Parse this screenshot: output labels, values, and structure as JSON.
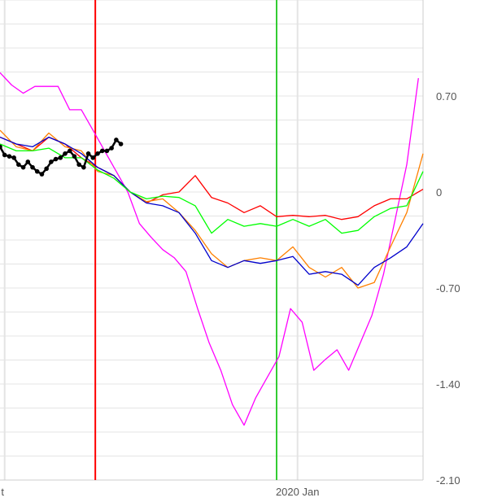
{
  "chart_data": {
    "type": "line",
    "title": "",
    "xlabel": "",
    "ylabel": "",
    "ylim": [
      -2.1,
      1.4
    ],
    "y_ticks": [
      {
        "value": 0.7,
        "label": "0.70"
      },
      {
        "value": 0,
        "label": "0"
      },
      {
        "value": -0.7,
        "label": "-0.70"
      },
      {
        "value": -1.4,
        "label": "-1.40"
      },
      {
        "value": -2.1,
        "label": "-2.10"
      }
    ],
    "x_axis": {
      "start": "2019-08-26",
      "end": "2020-02-24",
      "tick_labels": [
        {
          "date": "2019-08-28",
          "label": "t"
        },
        {
          "date": "2020-01-01",
          "label": "2020 Jan"
        }
      ],
      "vertical_markers": [
        {
          "date": "2019-10-06",
          "color": "#ff0000"
        },
        {
          "date": "2019-12-23",
          "color": "#33cc33"
        }
      ]
    },
    "grid": true,
    "legend": "none",
    "colors": {
      "black": "#000000",
      "magenta": "#ff00ff",
      "red": "#ff0000",
      "orange": "#ff8000",
      "blue": "#0000cc",
      "green": "#00ff00",
      "grid": "#e4e4e4"
    },
    "series": [
      {
        "color": "magenta",
        "x": [
          "2019-08-26",
          "2019-08-31",
          "2019-09-05",
          "2019-09-10",
          "2019-09-15",
          "2019-09-20",
          "2019-09-25",
          "2019-09-30",
          "2019-10-05",
          "2019-10-10",
          "2019-10-15",
          "2019-10-20",
          "2019-10-25",
          "2019-10-30",
          "2019-11-04",
          "2019-11-09",
          "2019-11-14",
          "2019-11-19",
          "2019-11-24",
          "2019-11-29",
          "2019-12-04",
          "2019-12-09",
          "2019-12-14",
          "2019-12-19",
          "2019-12-24",
          "2019-12-29",
          "2020-01-03",
          "2020-01-08",
          "2020-01-13",
          "2020-01-18",
          "2020-01-23",
          "2020-01-28",
          "2020-02-02",
          "2020-02-07",
          "2020-02-12",
          "2020-02-17",
          "2020-02-22"
        ],
        "values": [
          0.87,
          0.78,
          0.72,
          0.77,
          0.77,
          0.77,
          0.6,
          0.6,
          0.45,
          0.3,
          0.15,
          0.0,
          -0.23,
          -0.33,
          -0.42,
          -0.48,
          -0.58,
          -0.85,
          -1.1,
          -1.3,
          -1.55,
          -1.7,
          -1.5,
          -1.35,
          -1.2,
          -0.85,
          -0.95,
          -1.3,
          -1.22,
          -1.15,
          -1.3,
          -1.1,
          -0.9,
          -0.6,
          -0.2,
          0.2,
          0.83
        ]
      },
      {
        "color": "red",
        "x": [
          "2019-08-26",
          "2019-09-02",
          "2019-09-09",
          "2019-09-16",
          "2019-09-23",
          "2019-09-30",
          "2019-10-07",
          "2019-10-14",
          "2019-10-21",
          "2019-10-28",
          "2019-11-04",
          "2019-11-11",
          "2019-11-18",
          "2019-11-25",
          "2019-12-02",
          "2019-12-09",
          "2019-12-16",
          "2019-12-23",
          "2019-12-30",
          "2020-01-06",
          "2020-01-13",
          "2020-01-20",
          "2020-01-27",
          "2020-02-03",
          "2020-02-10",
          "2020-02-17",
          "2020-02-24"
        ],
        "values": [
          0.4,
          0.35,
          0.3,
          0.4,
          0.35,
          0.25,
          0.18,
          0.12,
          0.0,
          -0.08,
          -0.02,
          0.0,
          0.12,
          -0.04,
          -0.08,
          -0.15,
          -0.1,
          -0.18,
          -0.17,
          -0.18,
          -0.17,
          -0.2,
          -0.18,
          -0.1,
          -0.05,
          -0.05,
          0.02
        ]
      },
      {
        "color": "orange",
        "x": [
          "2019-08-26",
          "2019-09-02",
          "2019-09-09",
          "2019-09-16",
          "2019-09-23",
          "2019-09-30",
          "2019-10-07",
          "2019-10-14",
          "2019-10-21",
          "2019-10-28",
          "2019-11-04",
          "2019-11-11",
          "2019-11-18",
          "2019-11-25",
          "2019-12-02",
          "2019-12-09",
          "2019-12-16",
          "2019-12-23",
          "2019-12-30",
          "2020-01-06",
          "2020-01-13",
          "2020-01-20",
          "2020-01-27",
          "2020-02-03",
          "2020-02-10",
          "2020-02-17",
          "2020-02-24"
        ],
        "values": [
          0.45,
          0.33,
          0.3,
          0.43,
          0.33,
          0.3,
          0.15,
          0.12,
          0.0,
          -0.07,
          -0.05,
          -0.15,
          -0.28,
          -0.45,
          -0.55,
          -0.5,
          -0.48,
          -0.5,
          -0.4,
          -0.55,
          -0.62,
          -0.55,
          -0.7,
          -0.66,
          -0.4,
          -0.15,
          0.28
        ]
      },
      {
        "color": "blue",
        "x": [
          "2019-08-26",
          "2019-09-02",
          "2019-09-09",
          "2019-09-16",
          "2019-09-23",
          "2019-09-30",
          "2019-10-07",
          "2019-10-14",
          "2019-10-21",
          "2019-10-28",
          "2019-11-04",
          "2019-11-11",
          "2019-11-18",
          "2019-11-25",
          "2019-12-02",
          "2019-12-09",
          "2019-12-16",
          "2019-12-23",
          "2019-12-30",
          "2020-01-06",
          "2020-01-13",
          "2020-01-20",
          "2020-01-27",
          "2020-02-03",
          "2020-02-10",
          "2020-02-17",
          "2020-02-24"
        ],
        "values": [
          0.4,
          0.35,
          0.33,
          0.4,
          0.35,
          0.28,
          0.18,
          0.12,
          0.0,
          -0.08,
          -0.1,
          -0.15,
          -0.3,
          -0.5,
          -0.55,
          -0.5,
          -0.52,
          -0.5,
          -0.47,
          -0.6,
          -0.58,
          -0.6,
          -0.68,
          -0.55,
          -0.48,
          -0.4,
          -0.23
        ]
      },
      {
        "color": "green",
        "x": [
          "2019-08-26",
          "2019-09-02",
          "2019-09-09",
          "2019-09-16",
          "2019-09-23",
          "2019-09-30",
          "2019-10-07",
          "2019-10-14",
          "2019-10-21",
          "2019-10-28",
          "2019-11-04",
          "2019-11-11",
          "2019-11-18",
          "2019-11-25",
          "2019-12-02",
          "2019-12-09",
          "2019-12-16",
          "2019-12-23",
          "2019-12-30",
          "2020-01-06",
          "2020-01-13",
          "2020-01-20",
          "2020-01-27",
          "2020-02-03",
          "2020-02-10",
          "2020-02-17",
          "2020-02-24"
        ],
        "values": [
          0.35,
          0.3,
          0.3,
          0.32,
          0.25,
          0.25,
          0.16,
          0.1,
          0.0,
          -0.05,
          -0.03,
          -0.04,
          -0.1,
          -0.3,
          -0.2,
          -0.25,
          -0.23,
          -0.25,
          -0.2,
          -0.25,
          -0.2,
          -0.3,
          -0.28,
          -0.18,
          -0.12,
          -0.1,
          0.15
        ]
      },
      {
        "color": "black",
        "markers": true,
        "x": [
          "2019-08-26",
          "2019-08-28",
          "2019-08-30",
          "2019-09-01",
          "2019-09-03",
          "2019-09-05",
          "2019-09-07",
          "2019-09-09",
          "2019-09-11",
          "2019-09-13",
          "2019-09-15",
          "2019-09-17",
          "2019-09-19",
          "2019-09-21",
          "2019-09-23",
          "2019-09-25",
          "2019-09-27",
          "2019-09-29",
          "2019-10-01",
          "2019-10-03",
          "2019-10-05",
          "2019-10-07",
          "2019-10-09",
          "2019-10-11",
          "2019-10-13",
          "2019-10-15",
          "2019-10-17"
        ],
        "values": [
          0.33,
          0.27,
          0.26,
          0.25,
          0.2,
          0.18,
          0.22,
          0.18,
          0.15,
          0.13,
          0.17,
          0.22,
          0.24,
          0.25,
          0.28,
          0.3,
          0.26,
          0.2,
          0.18,
          0.28,
          0.25,
          0.28,
          0.3,
          0.3,
          0.32,
          0.38,
          0.35
        ]
      }
    ]
  }
}
